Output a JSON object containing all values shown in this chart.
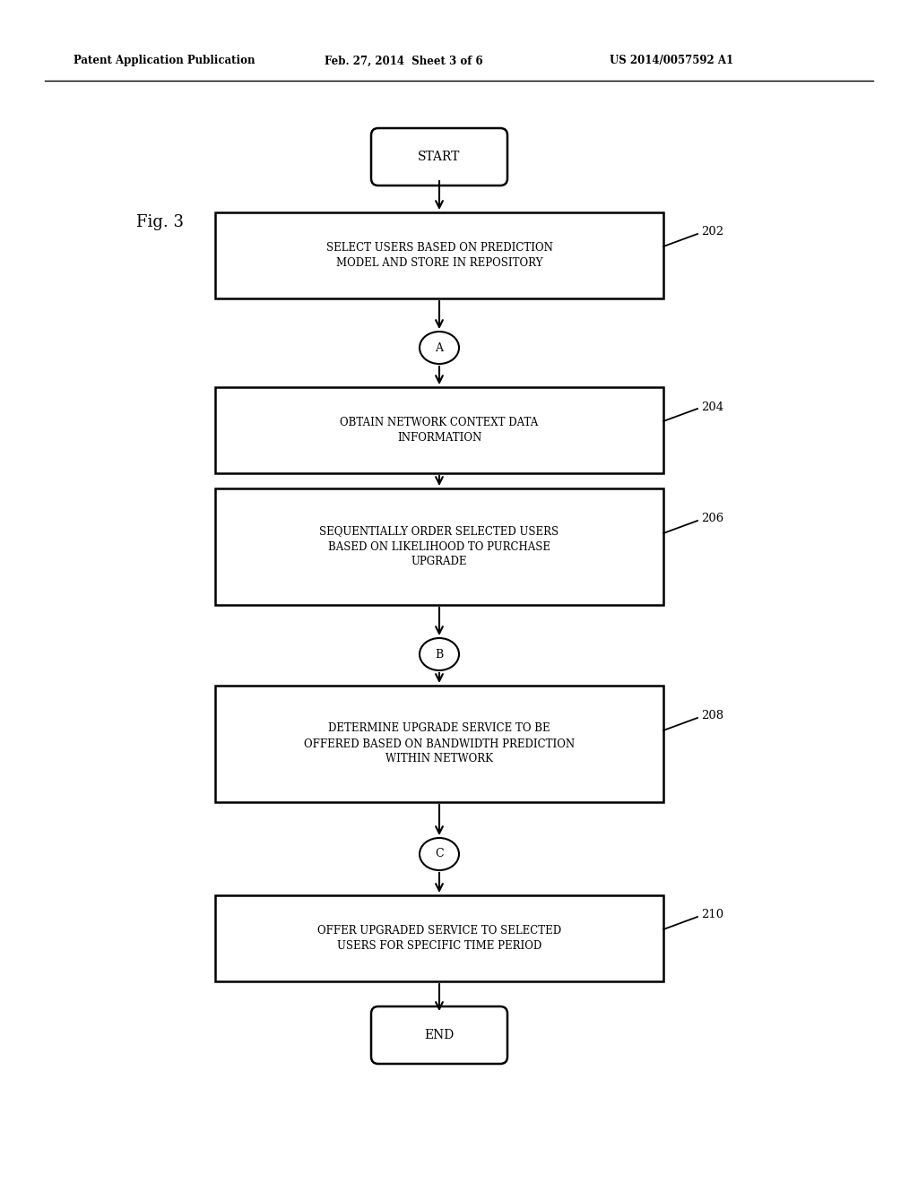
{
  "header_left": "Patent Application Publication",
  "header_mid": "Feb. 27, 2014  Sheet 3 of 6",
  "header_right": "US 2014/0057592 A1",
  "fig_label": "Fig. 3",
  "start_label": "START",
  "end_label": "END",
  "boxes": [
    {
      "text": "SELECT USERS BASED ON PREDICTION\nMODEL AND STORE IN REPOSITORY",
      "ref": "202"
    },
    {
      "text": "OBTAIN NETWORK CONTEXT DATA\nINFORMATION",
      "ref": "204"
    },
    {
      "text": "SEQUENTIALLY ORDER SELECTED USERS\nBASED ON LIKELIHOOD TO PURCHASE\nUPGRADE",
      "ref": "206"
    },
    {
      "text": "DETERMINE UPGRADE SERVICE TO BE\nOFFERED BASED ON BANDWIDTH PREDICTION\nWITHIN NETWORK",
      "ref": "208"
    },
    {
      "text": "OFFER UPGRADED SERVICE TO SELECTED\nUSERS FOR SPECIFIC TIME PERIOD",
      "ref": "210"
    }
  ],
  "connectors": [
    "A",
    "B",
    "C"
  ],
  "background_color": "#ffffff",
  "text_color": "#000000",
  "font_size_box": 8.5,
  "font_size_header": 8.5,
  "font_size_ref": 9.5,
  "font_size_fig": 13,
  "font_size_start_end": 10,
  "font_size_connector": 9
}
